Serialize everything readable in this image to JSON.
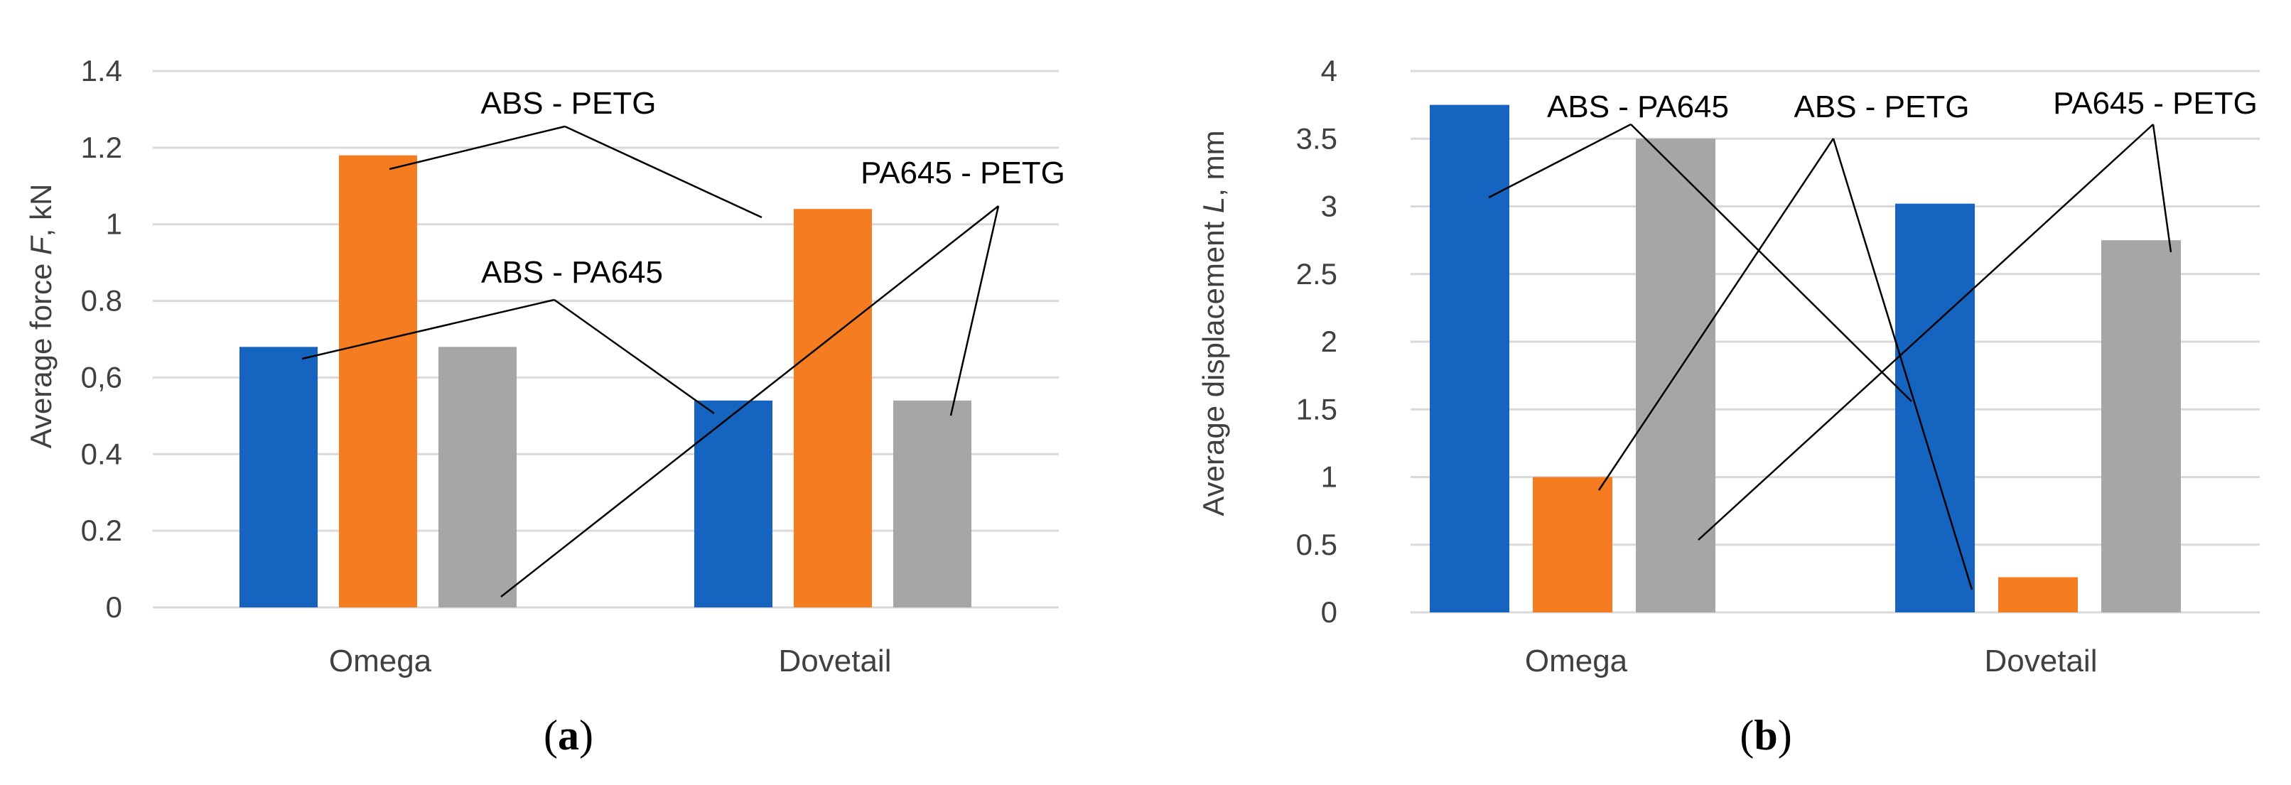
{
  "chart_data": [
    {
      "panel": "a",
      "type": "bar",
      "title": "",
      "panel_label": "(a)",
      "panel_label_parts": {
        "open": "(",
        "letter": "a",
        "close": ")"
      },
      "xlabel": "",
      "ylabel": "Average force F, kN",
      "ylabel_parts": {
        "before": "Average force ",
        "var": "F",
        "after": ", kN"
      },
      "ylim": [
        0,
        1.4
      ],
      "yticks": [
        0,
        0.2,
        0.4,
        0.6,
        0.8,
        1,
        1.2,
        1.4
      ],
      "ytick_labels": [
        "0",
        "0.2",
        "0.4",
        "0,6",
        "0.8",
        "1",
        "1.2",
        "1.4"
      ],
      "grid": true,
      "categories": [
        "Omega",
        "Dovetail"
      ],
      "series": [
        {
          "name": "ABS - PA645",
          "color": "#1565c0",
          "values": [
            0.68,
            0.54
          ]
        },
        {
          "name": "ABS - PETG",
          "color": "#f57c20",
          "values": [
            1.18,
            1.04
          ]
        },
        {
          "name": "PA645 - PETG",
          "color": "#a6a6a6",
          "values": [
            0.68,
            0.54
          ]
        }
      ],
      "annotations": [
        {
          "text": "ABS - PETG",
          "series": 1
        },
        {
          "text": "PA645 - PETG",
          "series": 2
        },
        {
          "text": "ABS - PA645",
          "series": 0
        }
      ]
    },
    {
      "panel": "b",
      "type": "bar",
      "title": "",
      "panel_label": "(b)",
      "panel_label_parts": {
        "open": "(",
        "letter": "b",
        "close": ")"
      },
      "xlabel": "",
      "ylabel": "Average displacement L, mm",
      "ylabel_parts": {
        "before": "Average displacement ",
        "var": "L",
        "after": ", mm"
      },
      "ylim": [
        0,
        4
      ],
      "yticks": [
        0,
        0.5,
        1,
        1.5,
        2,
        2.5,
        3,
        3.5,
        4
      ],
      "ytick_labels": [
        "0",
        "0.5",
        "1",
        "1.5",
        "2",
        "2.5",
        "3",
        "3.5",
        "4"
      ],
      "grid": true,
      "categories": [
        "Omega",
        "Dovetail"
      ],
      "series": [
        {
          "name": "ABS - PA645",
          "color": "#1565c0",
          "values": [
            3.75,
            3.02
          ]
        },
        {
          "name": "ABS - PETG",
          "color": "#f57c20",
          "values": [
            1.0,
            0.26
          ]
        },
        {
          "name": "PA645 - PETG",
          "color": "#a6a6a6",
          "values": [
            3.5,
            2.75
          ]
        }
      ],
      "annotations": [
        {
          "text": "ABS - PA645",
          "series": 0
        },
        {
          "text": "ABS - PETG",
          "series": 1
        },
        {
          "text": "PA645 - PETG",
          "series": 2
        }
      ]
    }
  ]
}
